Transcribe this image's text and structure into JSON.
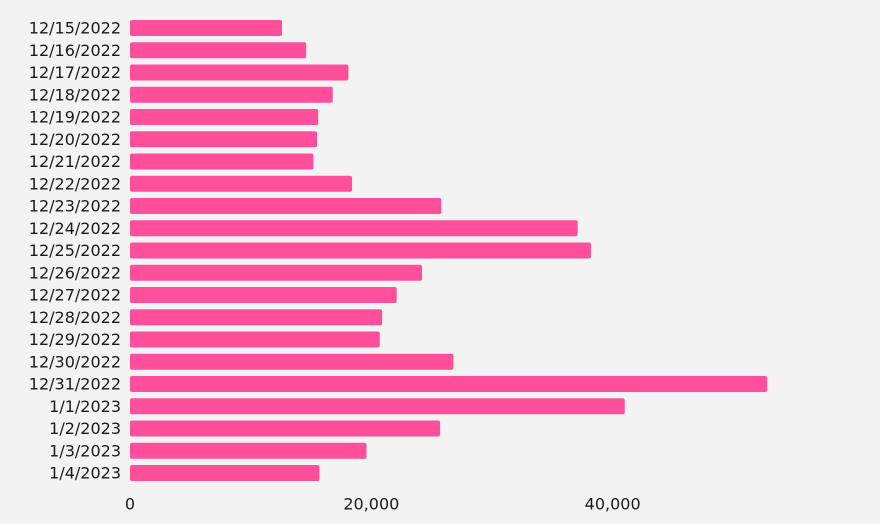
{
  "chart_data": {
    "type": "bar",
    "orientation": "horizontal",
    "title": "",
    "xlabel": "",
    "ylabel": "",
    "categories": [
      "12/15/2022",
      "12/16/2022",
      "12/17/2022",
      "12/18/2022",
      "12/19/2022",
      "12/20/2022",
      "12/21/2022",
      "12/22/2022",
      "12/23/2022",
      "12/24/2022",
      "12/25/2022",
      "12/26/2022",
      "12/27/2022",
      "12/28/2022",
      "12/29/2022",
      "12/30/2022",
      "12/31/2022",
      "1/1/2023",
      "1/2/2023",
      "1/3/2023",
      "1/4/2023"
    ],
    "values": [
      12600,
      14600,
      18100,
      16800,
      15600,
      15500,
      15200,
      18400,
      25800,
      37100,
      38200,
      24200,
      22100,
      20900,
      20700,
      26800,
      52800,
      41000,
      25700,
      19600,
      15700
    ],
    "xlim": [
      0,
      60000
    ],
    "xticks": [
      0,
      20000,
      40000
    ],
    "xtick_labels": [
      "0",
      "20,000",
      "40,000"
    ],
    "bar_color": "#ff4f9b",
    "grid": false,
    "legend": "none"
  }
}
